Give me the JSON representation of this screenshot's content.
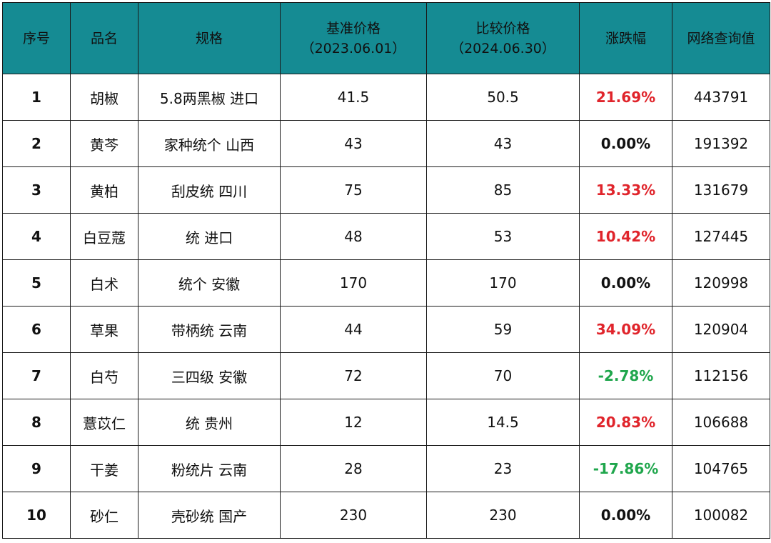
{
  "header": {
    "index": "序号",
    "name": "品名",
    "spec": "规格",
    "base_price": "基准价格",
    "base_date": "（2023.06.01）",
    "compare_price": "比较价格",
    "compare_date": "（2024.06.30）",
    "change": "涨跌幅",
    "queries": "网络查询值"
  },
  "colors": {
    "header_bg": "#158b93",
    "up": "#e0242b",
    "down": "#1fa64c",
    "flat": "#111111"
  },
  "rows": [
    {
      "index": "1",
      "name": "胡椒",
      "spec": "5.8两黑椒 进口",
      "base": "41.5",
      "compare": "50.5",
      "change": "21.69%",
      "trend": "up",
      "queries": "443791"
    },
    {
      "index": "2",
      "name": "黄芩",
      "spec": "家种统个 山西",
      "base": "43",
      "compare": "43",
      "change": "0.00%",
      "trend": "flat",
      "queries": "191392"
    },
    {
      "index": "3",
      "name": "黄柏",
      "spec": "刮皮统 四川",
      "base": "75",
      "compare": "85",
      "change": "13.33%",
      "trend": "up",
      "queries": "131679"
    },
    {
      "index": "4",
      "name": "白豆蔻",
      "spec": "统 进口",
      "base": "48",
      "compare": "53",
      "change": "10.42%",
      "trend": "up",
      "queries": "127445"
    },
    {
      "index": "5",
      "name": "白术",
      "spec": "统个 安徽",
      "base": "170",
      "compare": "170",
      "change": "0.00%",
      "trend": "flat",
      "queries": "120998"
    },
    {
      "index": "6",
      "name": "草果",
      "spec": "带柄统 云南",
      "base": "44",
      "compare": "59",
      "change": "34.09%",
      "trend": "up",
      "queries": "120904"
    },
    {
      "index": "7",
      "name": "白芍",
      "spec": "三四级 安徽",
      "base": "72",
      "compare": "70",
      "change": "-2.78%",
      "trend": "down",
      "queries": "112156"
    },
    {
      "index": "8",
      "name": "薏苡仁",
      "spec": "统 贵州",
      "base": "12",
      "compare": "14.5",
      "change": "20.83%",
      "trend": "up",
      "queries": "106688"
    },
    {
      "index": "9",
      "name": "干姜",
      "spec": "粉统片 云南",
      "base": "28",
      "compare": "23",
      "change": "-17.86%",
      "trend": "down",
      "queries": "104765"
    },
    {
      "index": "10",
      "name": "砂仁",
      "spec": "壳砂统 国产",
      "base": "230",
      "compare": "230",
      "change": "0.00%",
      "trend": "flat",
      "queries": "100082"
    }
  ]
}
